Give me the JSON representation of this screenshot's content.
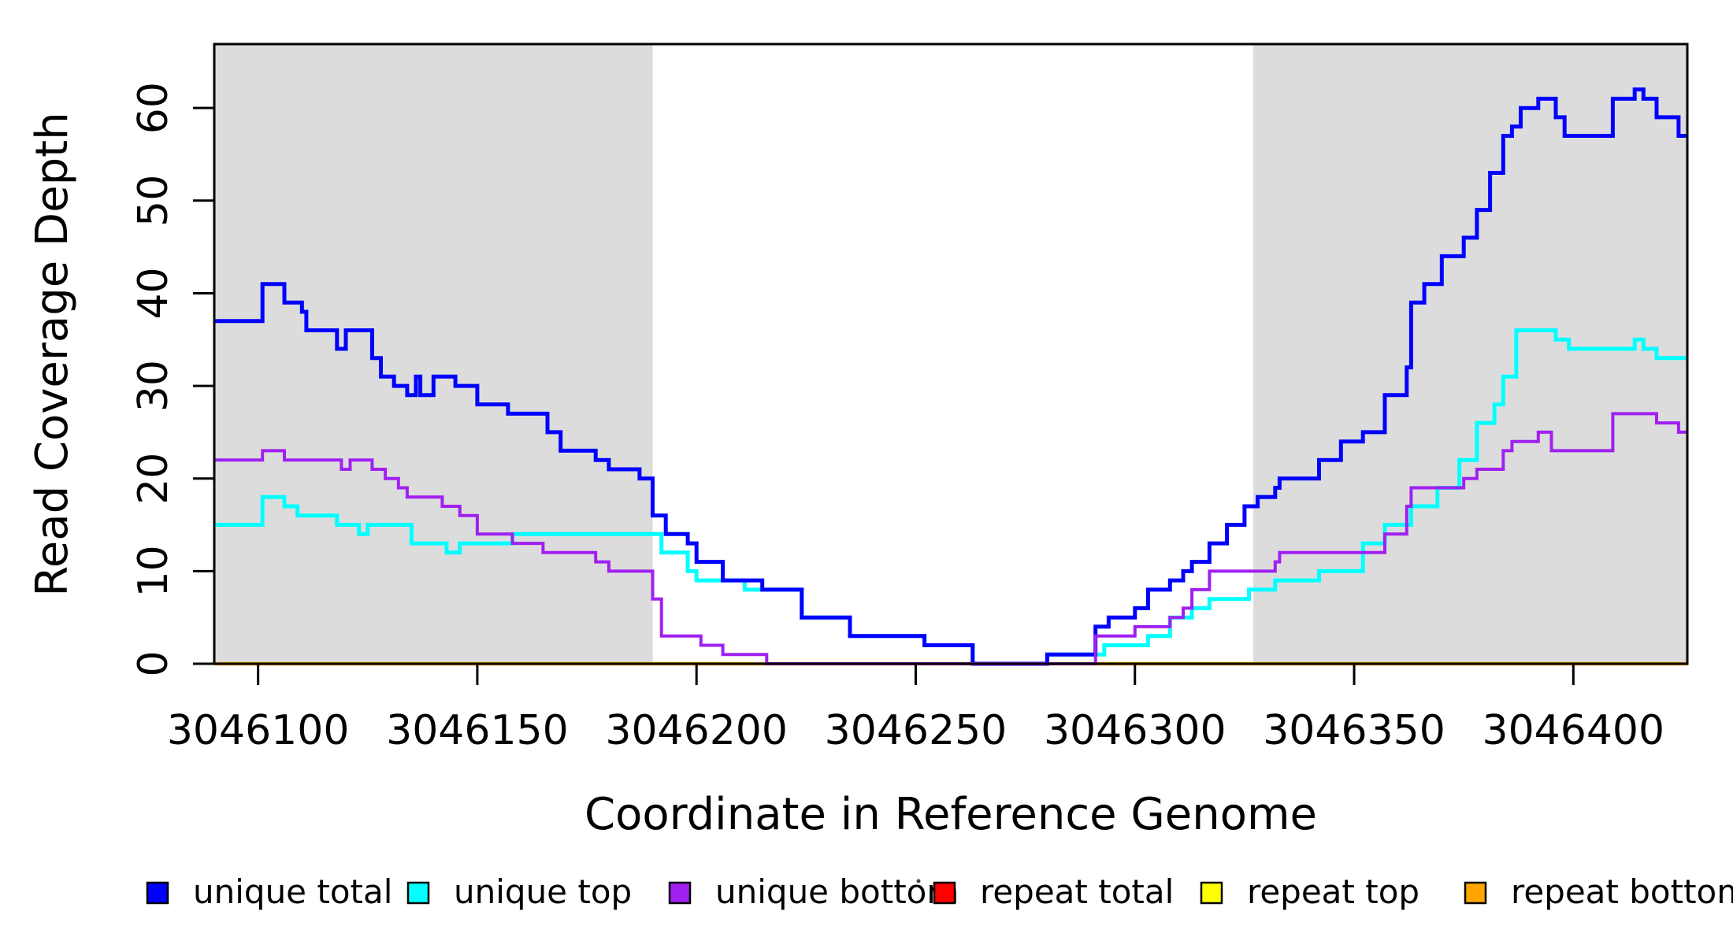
{
  "chart_data": {
    "type": "line",
    "subtype": "step-after",
    "title": "",
    "xlabel": "Coordinate in Reference Genome",
    "ylabel": "Read Coverage Depth",
    "xlim": [
      3046090,
      3046426
    ],
    "ylim": [
      0,
      66.9
    ],
    "xticks": [
      3046100,
      3046150,
      3046200,
      3046250,
      3046300,
      3046350,
      3046400
    ],
    "yticks": [
      0,
      10,
      20,
      30,
      40,
      50,
      60
    ],
    "grid": false,
    "background_color": "#ffffff",
    "region_color": "#dcdcdc",
    "highlight_regions": [
      {
        "name": "left-unique-flank",
        "x0": 3046090,
        "x1": 3046190
      },
      {
        "name": "right-unique-flank",
        "x0": 3046327,
        "x1": 3046426
      }
    ],
    "legend": {
      "position": "bottom",
      "entries": [
        {
          "label": "unique total",
          "color": "#0000ff"
        },
        {
          "label": "unique top",
          "color": "#00ffff"
        },
        {
          "label": "unique bottom",
          "color": "#a020f0"
        },
        {
          "label": "repeat total",
          "color": "#ff0000"
        },
        {
          "label": "repeat top",
          "color": "#ffff00"
        },
        {
          "label": "repeat bottom",
          "color": "#ffa500"
        }
      ]
    },
    "series": [
      {
        "name": "unique total",
        "color": "#0000ff",
        "points": [
          [
            3046090,
            37
          ],
          [
            3046101,
            41
          ],
          [
            3046106,
            39
          ],
          [
            3046110,
            38
          ],
          [
            3046111,
            36
          ],
          [
            3046118,
            34
          ],
          [
            3046120,
            36
          ],
          [
            3046126,
            33
          ],
          [
            3046128,
            31
          ],
          [
            3046131,
            30
          ],
          [
            3046134,
            29
          ],
          [
            3046136,
            31
          ],
          [
            3046137,
            29
          ],
          [
            3046140,
            31
          ],
          [
            3046145,
            30
          ],
          [
            3046150,
            28
          ],
          [
            3046157,
            27
          ],
          [
            3046166,
            25
          ],
          [
            3046169,
            23
          ],
          [
            3046177,
            22
          ],
          [
            3046180,
            21
          ],
          [
            3046187,
            20
          ],
          [
            3046190,
            16
          ],
          [
            3046193,
            14
          ],
          [
            3046198,
            13
          ],
          [
            3046200,
            11
          ],
          [
            3046206,
            9
          ],
          [
            3046215,
            8
          ],
          [
            3046224,
            5
          ],
          [
            3046235,
            3
          ],
          [
            3046252,
            2
          ],
          [
            3046263,
            0
          ],
          [
            3046280,
            1
          ],
          [
            3046291,
            4
          ],
          [
            3046294,
            5
          ],
          [
            3046300,
            6
          ],
          [
            3046303,
            8
          ],
          [
            3046308,
            9
          ],
          [
            3046311,
            10
          ],
          [
            3046313,
            11
          ],
          [
            3046317,
            13
          ],
          [
            3046321,
            15
          ],
          [
            3046325,
            17
          ],
          [
            3046328,
            18
          ],
          [
            3046332,
            19
          ],
          [
            3046333,
            20
          ],
          [
            3046342,
            22
          ],
          [
            3046347,
            24
          ],
          [
            3046352,
            25
          ],
          [
            3046357,
            29
          ],
          [
            3046362,
            32
          ],
          [
            3046363,
            39
          ],
          [
            3046366,
            41
          ],
          [
            3046370,
            44
          ],
          [
            3046375,
            46
          ],
          [
            3046378,
            49
          ],
          [
            3046381,
            53
          ],
          [
            3046384,
            57
          ],
          [
            3046386,
            58
          ],
          [
            3046388,
            60
          ],
          [
            3046392,
            61
          ],
          [
            3046396,
            59
          ],
          [
            3046398,
            57
          ],
          [
            3046409,
            61
          ],
          [
            3046414,
            62
          ],
          [
            3046416,
            61
          ],
          [
            3046419,
            59
          ],
          [
            3046424,
            57
          ]
        ]
      },
      {
        "name": "unique top",
        "color": "#00ffff",
        "points": [
          [
            3046090,
            15
          ],
          [
            3046101,
            18
          ],
          [
            3046106,
            17
          ],
          [
            3046109,
            16
          ],
          [
            3046118,
            15
          ],
          [
            3046123,
            14
          ],
          [
            3046125,
            15
          ],
          [
            3046135,
            13
          ],
          [
            3046143,
            12
          ],
          [
            3046146,
            13
          ],
          [
            3046158,
            14
          ],
          [
            3046192,
            12
          ],
          [
            3046198,
            10
          ],
          [
            3046200,
            9
          ],
          [
            3046211,
            8
          ],
          [
            3046224,
            5
          ],
          [
            3046235,
            3
          ],
          [
            3046252,
            2
          ],
          [
            3046263,
            0
          ],
          [
            3046280,
            1
          ],
          [
            3046293,
            2
          ],
          [
            3046303,
            3
          ],
          [
            3046308,
            5
          ],
          [
            3046313,
            6
          ],
          [
            3046317,
            7
          ],
          [
            3046326,
            8
          ],
          [
            3046332,
            9
          ],
          [
            3046342,
            10
          ],
          [
            3046352,
            13
          ],
          [
            3046357,
            15
          ],
          [
            3046363,
            17
          ],
          [
            3046369,
            19
          ],
          [
            3046374,
            22
          ],
          [
            3046378,
            26
          ],
          [
            3046382,
            28
          ],
          [
            3046384,
            31
          ],
          [
            3046387,
            36
          ],
          [
            3046396,
            35
          ],
          [
            3046399,
            34
          ],
          [
            3046414,
            35
          ],
          [
            3046416,
            34
          ],
          [
            3046419,
            33
          ]
        ]
      },
      {
        "name": "unique bottom",
        "color": "#a020f0",
        "points": [
          [
            3046090,
            22
          ],
          [
            3046101,
            23
          ],
          [
            3046106,
            22
          ],
          [
            3046119,
            21
          ],
          [
            3046121,
            22
          ],
          [
            3046126,
            21
          ],
          [
            3046129,
            20
          ],
          [
            3046132,
            19
          ],
          [
            3046134,
            18
          ],
          [
            3046142,
            17
          ],
          [
            3046146,
            16
          ],
          [
            3046150,
            14
          ],
          [
            3046158,
            13
          ],
          [
            3046165,
            12
          ],
          [
            3046177,
            11
          ],
          [
            3046180,
            10
          ],
          [
            3046190,
            7
          ],
          [
            3046192,
            3
          ],
          [
            3046201,
            2
          ],
          [
            3046206,
            1
          ],
          [
            3046216,
            0
          ],
          [
            3046291,
            3
          ],
          [
            3046300,
            4
          ],
          [
            3046308,
            5
          ],
          [
            3046311,
            6
          ],
          [
            3046313,
            8
          ],
          [
            3046317,
            10
          ],
          [
            3046332,
            11
          ],
          [
            3046333,
            12
          ],
          [
            3046357,
            14
          ],
          [
            3046362,
            17
          ],
          [
            3046363,
            19
          ],
          [
            3046375,
            20
          ],
          [
            3046378,
            21
          ],
          [
            3046384,
            23
          ],
          [
            3046386,
            24
          ],
          [
            3046392,
            25
          ],
          [
            3046395,
            23
          ],
          [
            3046409,
            27
          ],
          [
            3046419,
            26
          ],
          [
            3046424,
            25
          ]
        ]
      },
      {
        "name": "repeat total",
        "color": "#ff0000",
        "points": [
          [
            3046090,
            0
          ]
        ]
      },
      {
        "name": "repeat top",
        "color": "#ffff00",
        "points": [
          [
            3046090,
            0
          ]
        ]
      },
      {
        "name": "repeat bottom",
        "color": "#ffa500",
        "points": [
          [
            3046090,
            0
          ]
        ]
      }
    ],
    "draw_order": [
      "repeat total",
      "repeat top",
      "repeat bottom",
      "unique top",
      "unique total",
      "unique bottom"
    ]
  }
}
